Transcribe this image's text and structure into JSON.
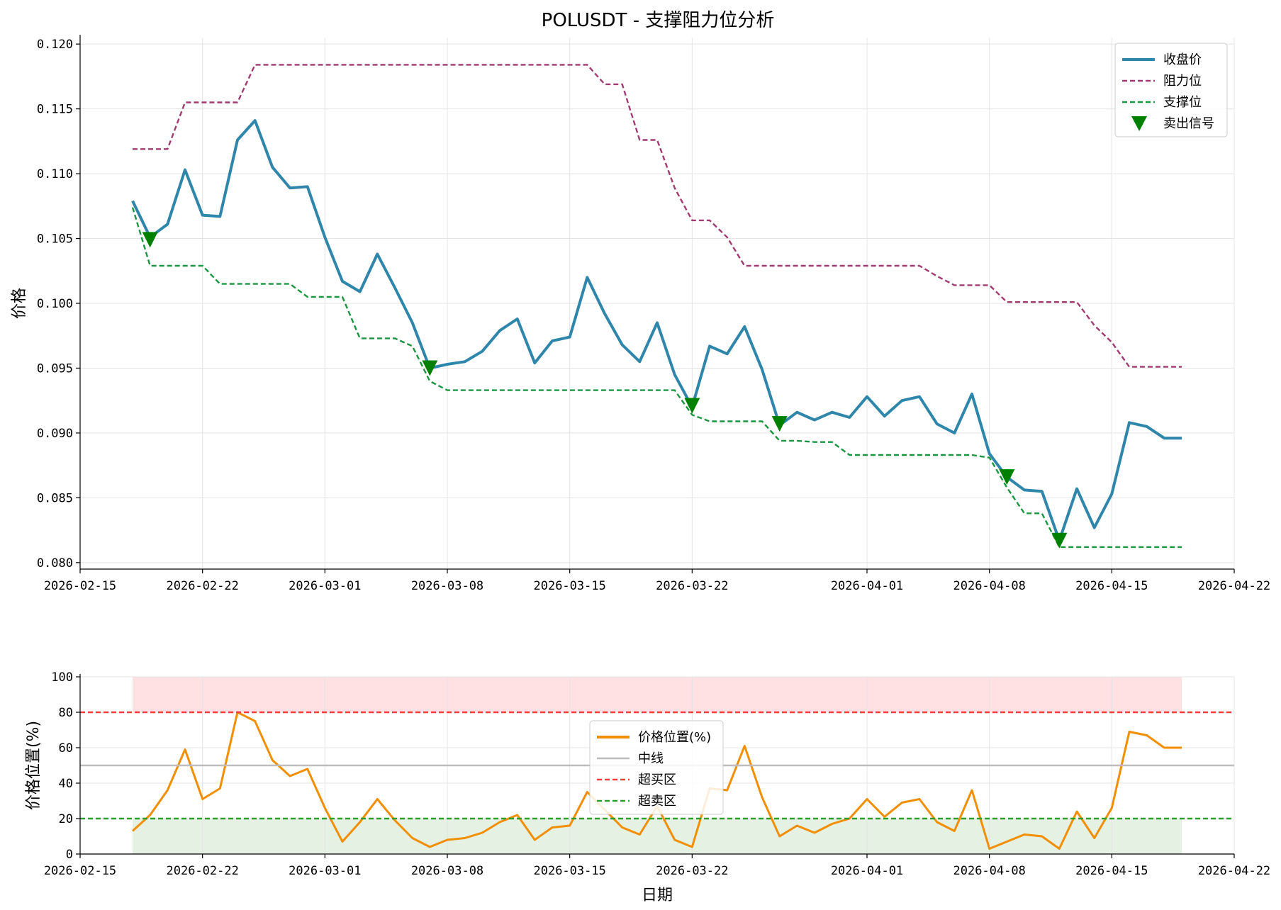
{
  "chart_data": [
    {
      "type": "line",
      "title": "POLUSDT - 支撑阻力位分析",
      "xlabel": "",
      "ylabel": "价格",
      "x_range": [
        "2026-02-15",
        "2026-04-22"
      ],
      "x_ticks": [
        "2026-02-15",
        "2026-02-22",
        "2026-03-01",
        "2026-03-08",
        "2026-03-15",
        "2026-03-22",
        "2026-04-01",
        "2026-04-08",
        "2026-04-15",
        "2026-04-22"
      ],
      "ylim": [
        0.0795,
        0.1205
      ],
      "y_ticks": [
        0.08,
        0.085,
        0.09,
        0.095,
        0.1,
        0.105,
        0.11,
        0.115,
        0.12
      ],
      "y_tick_labels": [
        "0.080",
        "0.085",
        "0.090",
        "0.095",
        "0.100",
        "0.105",
        "0.110",
        "0.115",
        "0.120"
      ],
      "grid": true,
      "legend_position": "top-right",
      "x": [
        "2026-02-18",
        "2026-02-19",
        "2026-02-20",
        "2026-02-21",
        "2026-02-22",
        "2026-02-23",
        "2026-02-24",
        "2026-02-25",
        "2026-02-26",
        "2026-02-27",
        "2026-02-28",
        "2026-03-01",
        "2026-03-02",
        "2026-03-03",
        "2026-03-04",
        "2026-03-05",
        "2026-03-06",
        "2026-03-07",
        "2026-03-08",
        "2026-03-09",
        "2026-03-10",
        "2026-03-11",
        "2026-03-12",
        "2026-03-13",
        "2026-03-14",
        "2026-03-15",
        "2026-03-16",
        "2026-03-17",
        "2026-03-18",
        "2026-03-19",
        "2026-03-20",
        "2026-03-21",
        "2026-03-22",
        "2026-03-23",
        "2026-03-24",
        "2026-03-25",
        "2026-03-26",
        "2026-03-27",
        "2026-03-28",
        "2026-03-29",
        "2026-03-30",
        "2026-03-31",
        "2026-04-01",
        "2026-04-02",
        "2026-04-03",
        "2026-04-04",
        "2026-04-05",
        "2026-04-06",
        "2026-04-07",
        "2026-04-08",
        "2026-04-09",
        "2026-04-10",
        "2026-04-11",
        "2026-04-12",
        "2026-04-13",
        "2026-04-14",
        "2026-04-15",
        "2026-04-16",
        "2026-04-17",
        "2026-04-18",
        "2026-04-19"
      ],
      "series": [
        {
          "name": "收盘价",
          "color": "#2e86ab",
          "style": "solid",
          "values": [
            0.1079,
            0.1051,
            0.1061,
            0.1103,
            0.1068,
            0.1067,
            0.1126,
            0.1141,
            0.1105,
            0.1089,
            0.109,
            0.1051,
            0.1017,
            0.1009,
            0.1038,
            0.1012,
            0.0985,
            0.095,
            0.0953,
            0.0955,
            0.0963,
            0.0979,
            0.0988,
            0.0954,
            0.0971,
            0.0974,
            0.102,
            0.0992,
            0.0968,
            0.0955,
            0.0985,
            0.0945,
            0.092,
            0.0967,
            0.0961,
            0.0982,
            0.0949,
            0.0906,
            0.0916,
            0.091,
            0.0916,
            0.0912,
            0.0928,
            0.0913,
            0.0925,
            0.0928,
            0.0907,
            0.09,
            0.093,
            0.0884,
            0.0866,
            0.0856,
            0.0855,
            0.0817,
            0.0857,
            0.0827,
            0.0853,
            0.0908,
            0.0905,
            0.0896,
            0.0896
          ]
        },
        {
          "name": "阻力位",
          "color": "#a23b72",
          "style": "dashed",
          "values": [
            0.1119,
            0.1119,
            0.1119,
            0.1155,
            0.1155,
            0.1155,
            0.1155,
            0.1184,
            0.1184,
            0.1184,
            0.1184,
            0.1184,
            0.1184,
            0.1184,
            0.1184,
            0.1184,
            0.1184,
            0.1184,
            0.1184,
            0.1184,
            0.1184,
            0.1184,
            0.1184,
            0.1184,
            0.1184,
            0.1184,
            0.1184,
            0.1169,
            0.1169,
            0.1126,
            0.1126,
            0.1089,
            0.1064,
            0.1064,
            0.1051,
            0.1029,
            0.1029,
            0.1029,
            0.1029,
            0.1029,
            0.1029,
            0.1029,
            0.1029,
            0.1029,
            0.1029,
            0.1029,
            0.1021,
            0.1014,
            0.1014,
            0.1014,
            0.1001,
            0.1001,
            0.1001,
            0.1001,
            0.1001,
            0.0983,
            0.097,
            0.0951,
            0.0951,
            0.0951,
            0.0951
          ]
        },
        {
          "name": "支撑位",
          "color": "#1a9641",
          "style": "dashed",
          "values": [
            0.1074,
            0.1029,
            0.1029,
            0.1029,
            0.1029,
            0.1015,
            0.1015,
            0.1015,
            0.1015,
            0.1015,
            0.1005,
            0.1005,
            0.1005,
            0.0973,
            0.0973,
            0.0973,
            0.0967,
            0.094,
            0.0933,
            0.0933,
            0.0933,
            0.0933,
            0.0933,
            0.0933,
            0.0933,
            0.0933,
            0.0933,
            0.0933,
            0.0933,
            0.0933,
            0.0933,
            0.0933,
            0.0914,
            0.0909,
            0.0909,
            0.0909,
            0.0909,
            0.0894,
            0.0894,
            0.0893,
            0.0893,
            0.0883,
            0.0883,
            0.0883,
            0.0883,
            0.0883,
            0.0883,
            0.0883,
            0.0883,
            0.0881,
            0.0858,
            0.0838,
            0.0838,
            0.0812,
            0.0812,
            0.0812,
            0.0812,
            0.0812,
            0.0812,
            0.0812,
            0.0812
          ]
        }
      ],
      "markers": {
        "name": "卖出信号",
        "color": "#008000",
        "shape": "triangle-down",
        "x": [
          "2026-02-19",
          "2026-03-07",
          "2026-03-22",
          "2026-03-27",
          "2026-04-09",
          "2026-04-12"
        ],
        "y": [
          0.1049,
          0.095,
          0.0921,
          0.0907,
          0.0866,
          0.0817
        ]
      }
    },
    {
      "type": "line",
      "title": "",
      "xlabel": "日期",
      "ylabel": "价格位置(%)",
      "x_range": [
        "2026-02-15",
        "2026-04-22"
      ],
      "x_ticks": [
        "2026-02-15",
        "2026-02-22",
        "2026-03-01",
        "2026-03-08",
        "2026-03-15",
        "2026-03-22",
        "2026-04-01",
        "2026-04-08",
        "2026-04-15",
        "2026-04-22"
      ],
      "ylim": [
        0,
        100
      ],
      "y_ticks": [
        0,
        20,
        40,
        60,
        80,
        100
      ],
      "y_tick_labels": [
        "0",
        "20",
        "40",
        "60",
        "80",
        "100"
      ],
      "grid": true,
      "legend_position": "center",
      "x": [
        "2026-02-18",
        "2026-02-19",
        "2026-02-20",
        "2026-02-21",
        "2026-02-22",
        "2026-02-23",
        "2026-02-24",
        "2026-02-25",
        "2026-02-26",
        "2026-02-27",
        "2026-02-28",
        "2026-03-01",
        "2026-03-02",
        "2026-03-03",
        "2026-03-04",
        "2026-03-05",
        "2026-03-06",
        "2026-03-07",
        "2026-03-08",
        "2026-03-09",
        "2026-03-10",
        "2026-03-11",
        "2026-03-12",
        "2026-03-13",
        "2026-03-14",
        "2026-03-15",
        "2026-03-16",
        "2026-03-17",
        "2026-03-18",
        "2026-03-19",
        "2026-03-20",
        "2026-03-21",
        "2026-03-22",
        "2026-03-23",
        "2026-03-24",
        "2026-03-25",
        "2026-03-26",
        "2026-03-27",
        "2026-03-28",
        "2026-03-29",
        "2026-03-30",
        "2026-03-31",
        "2026-04-01",
        "2026-04-02",
        "2026-04-03",
        "2026-04-04",
        "2026-04-05",
        "2026-04-06",
        "2026-04-07",
        "2026-04-08",
        "2026-04-09",
        "2026-04-10",
        "2026-04-11",
        "2026-04-12",
        "2026-04-13",
        "2026-04-14",
        "2026-04-15",
        "2026-04-16",
        "2026-04-17",
        "2026-04-18",
        "2026-04-19"
      ],
      "series": [
        {
          "name": "价格位置(%)",
          "color": "#f18f01",
          "style": "solid",
          "values": [
            13,
            22,
            36,
            59,
            31,
            37,
            80,
            75,
            53,
            44,
            48,
            26,
            7,
            18,
            31,
            19,
            9,
            4,
            8,
            9,
            12,
            18,
            22,
            8,
            15,
            16,
            35,
            25,
            15,
            11,
            27,
            8,
            4,
            37,
            36,
            61,
            32,
            10,
            16,
            12,
            17,
            20,
            31,
            21,
            29,
            31,
            18,
            13,
            36,
            3,
            7,
            11,
            10,
            3,
            24,
            9,
            26,
            69,
            67,
            60,
            60
          ]
        },
        {
          "name": "中线",
          "color": "#bdbdbd",
          "style": "solid",
          "constant": 50
        },
        {
          "name": "超买区",
          "color": "#ff3b3b",
          "style": "dashed",
          "constant": 80
        },
        {
          "name": "超卖区",
          "color": "#2ca02c",
          "style": "dashed",
          "constant": 20
        }
      ],
      "bands": [
        {
          "from": 80,
          "to": 100,
          "color": "#ffe0e3",
          "x_start": "2026-02-18",
          "x_end": "2026-04-19"
        },
        {
          "from": 0,
          "to": 20,
          "color": "#e5f1e2",
          "x_start": "2026-02-18",
          "x_end": "2026-04-19"
        }
      ]
    }
  ]
}
